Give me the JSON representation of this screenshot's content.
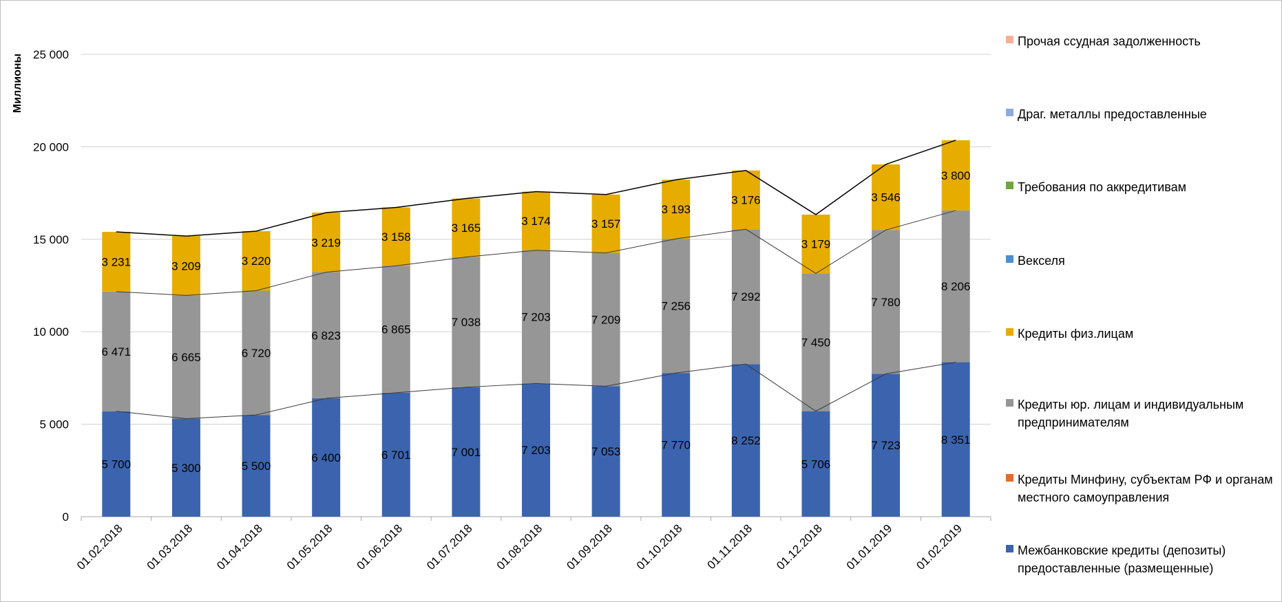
{
  "chart_data": {
    "type": "bar",
    "stacked": true,
    "ylabel": "Миллионы",
    "ylim": [
      0,
      25000
    ],
    "yticks": [
      0,
      5000,
      10000,
      15000,
      20000,
      25000
    ],
    "ytick_labels": [
      "0",
      "5 000",
      "10 000",
      "15 000",
      "20 000",
      "25 000"
    ],
    "grid": true,
    "legend_position": "right",
    "categories": [
      "01.02.2018",
      "01.03.2018",
      "01.04.2018",
      "01.05.2018",
      "01.06.2018",
      "01.07.2018",
      "01.08.2018",
      "01.09.2018",
      "01.10.2018",
      "01.11.2018",
      "01.12.2018",
      "01.01.2019",
      "01.02.2019"
    ],
    "series": [
      {
        "name": "Межбанковские кредиты (депозиты) предоставленные (размещенные)",
        "color": "#3c64ae",
        "values": [
          5700,
          5300,
          5500,
          6400,
          6701,
          7001,
          7203,
          7053,
          7770,
          8252,
          5706,
          7723,
          8351
        ],
        "labels": [
          "5 700",
          "5 300",
          "5 500",
          "6 400",
          "6 701",
          "7 001",
          "7 203",
          "7 053",
          "7 770",
          "8 252",
          "5 706",
          "7 723",
          "8 351"
        ]
      },
      {
        "name": "Кредиты Минфину, субъектам РФ и органам местного самоуправления",
        "color": "#e26b2b",
        "values": [
          0,
          0,
          0,
          0,
          0,
          0,
          0,
          0,
          0,
          0,
          0,
          0,
          0
        ],
        "labels": []
      },
      {
        "name": "Кредиты юр. лицам и индивидуальным предпринимателям",
        "color": "#969696",
        "values": [
          6471,
          6665,
          6720,
          6823,
          6865,
          7038,
          7203,
          7209,
          7256,
          7292,
          7450,
          7780,
          8206
        ],
        "labels": [
          "6 471",
          "6 665",
          "6 720",
          "6 823",
          "6 865",
          "7 038",
          "7 203",
          "7 209",
          "7 256",
          "7 292",
          "7 450",
          "7 780",
          "8 206"
        ]
      },
      {
        "name": "Кредиты физ.лицам",
        "color": "#e6ac00",
        "values": [
          3231,
          3209,
          3220,
          3219,
          3158,
          3165,
          3174,
          3157,
          3193,
          3176,
          3179,
          3546,
          3800
        ],
        "labels": [
          "3 231",
          "3 209",
          "3 220",
          "3 219",
          "3 158",
          "3 165",
          "3 174",
          "3 157",
          "3 193",
          "3 176",
          "3 179",
          "3 546",
          "3 800"
        ]
      },
      {
        "name": "Векселя",
        "color": "#4a90d0",
        "values": [
          0,
          0,
          0,
          0,
          0,
          0,
          0,
          0,
          0,
          0,
          0,
          0,
          0
        ],
        "labels": []
      },
      {
        "name": "Требования по аккредитивам",
        "color": "#70a540",
        "values": [
          0,
          0,
          0,
          0,
          0,
          0,
          0,
          0,
          0,
          0,
          0,
          0,
          0
        ],
        "labels": []
      },
      {
        "name": "Драг. металлы предоставленные",
        "color": "#8faadc",
        "values": [
          0,
          0,
          0,
          0,
          0,
          0,
          0,
          0,
          0,
          0,
          0,
          0,
          0
        ],
        "labels": []
      },
      {
        "name": "Прочая ссудная задолженность",
        "color": "#f4b09a",
        "values": [
          0,
          0,
          0,
          0,
          0,
          0,
          0,
          0,
          0,
          0,
          0,
          0,
          0
        ],
        "labels": []
      }
    ]
  }
}
